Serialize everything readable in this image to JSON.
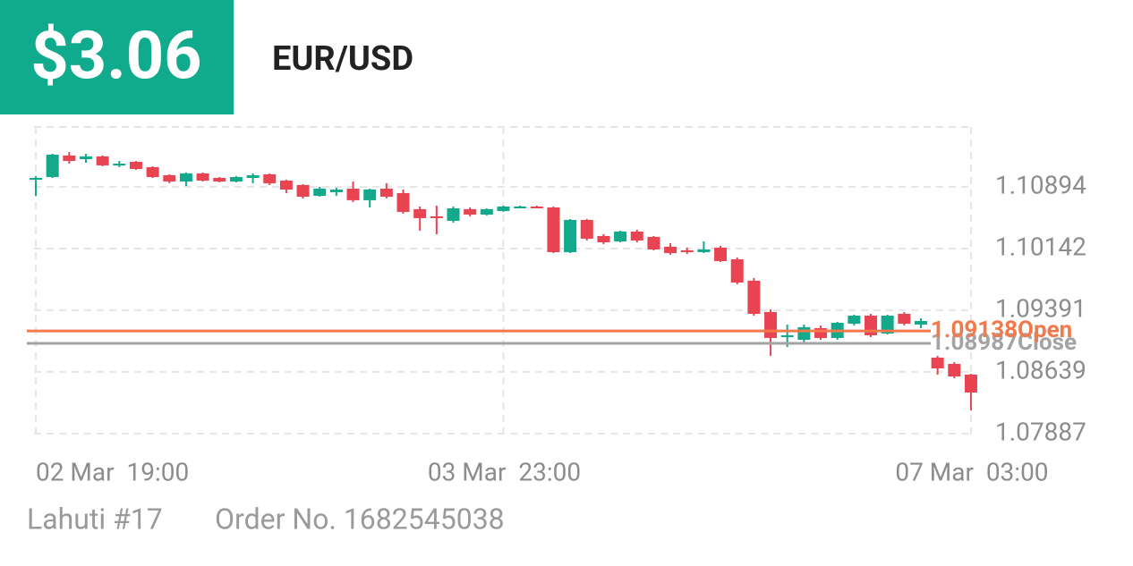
{
  "header": {
    "price": "$3.06",
    "pair": "EUR/USD"
  },
  "chart_data": {
    "type": "candlestick",
    "categories": [
      "02 Mar  19:00",
      null,
      null,
      null,
      null,
      null,
      null,
      null,
      null,
      null,
      null,
      null,
      null,
      null,
      null,
      null,
      null,
      null,
      null,
      null,
      null,
      null,
      null,
      null,
      null,
      null,
      null,
      null,
      "03 Mar  23:00",
      null,
      null,
      null,
      null,
      null,
      null,
      null,
      null,
      null,
      null,
      null,
      null,
      null,
      null,
      null,
      null,
      null,
      null,
      null,
      null,
      null,
      null,
      null,
      null,
      null,
      null,
      null,
      "07 Mar  03:00"
    ],
    "open": [
      1.10981,
      1.11014,
      1.11276,
      1.11232,
      1.11265,
      1.11156,
      1.11199,
      1.11134,
      1.11036,
      1.10959,
      1.11058,
      1.11003,
      1.10959,
      1.11003,
      1.11047,
      1.1097,
      1.10916,
      1.10785,
      1.10829,
      1.10872,
      1.10731,
      1.10872,
      1.10818,
      1.10622,
      1.10534,
      1.1048,
      1.10622,
      1.10556,
      1.106,
      1.10643,
      1.10654,
      1.10643,
      1.10098,
      1.10491,
      1.10295,
      1.10229,
      1.10349,
      1.10284,
      1.10164,
      1.1012,
      1.10098,
      1.10153,
      1.10011,
      1.0975,
      1.09368,
      1.09063,
      1.0903,
      1.09172,
      1.09052,
      1.09226,
      1.09324,
      1.09106,
      1.09346,
      1.09215,
      1.08812,
      1.08736,
      1.08605
    ],
    "high": [
      1.11025,
      1.11297,
      1.11319,
      1.11297,
      1.11276,
      1.1121,
      1.1121,
      1.11145,
      1.11047,
      1.11068,
      1.11068,
      1.11014,
      1.11025,
      1.11058,
      1.11058,
      1.10981,
      1.10927,
      1.10894,
      1.10883,
      1.10959,
      1.10872,
      1.10938,
      1.10861,
      1.10654,
      1.10665,
      1.10654,
      1.10643,
      1.10632,
      1.10665,
      1.10665,
      1.10665,
      1.10654,
      1.10502,
      1.10502,
      1.10316,
      1.1036,
      1.10371,
      1.10295,
      1.10207,
      1.10153,
      1.10229,
      1.10175,
      1.10033,
      1.09782,
      1.09401,
      1.09215,
      1.09215,
      1.09204,
      1.09248,
      1.09335,
      1.09346,
      1.09335,
      1.09368,
      1.09292,
      1.08834,
      1.08758,
      1.08616
    ],
    "low": [
      1.10785,
      1.11003,
      1.11177,
      1.11188,
      1.11145,
      1.11134,
      1.11101,
      1.11003,
      1.10938,
      1.10905,
      1.10959,
      1.10949,
      1.10949,
      1.10938,
      1.10916,
      1.10818,
      1.10752,
      1.10774,
      1.10785,
      1.10709,
      1.10643,
      1.10752,
      1.10567,
      1.1036,
      1.10316,
      1.10458,
      1.10534,
      1.10545,
      1.10589,
      1.10632,
      1.10632,
      1.10087,
      1.10087,
      1.1024,
      1.10196,
      1.10218,
      1.10218,
      1.1012,
      1.10066,
      1.10076,
      1.10087,
      1.09978,
      1.09706,
      1.09324,
      1.08834,
      1.08943,
      1.08987,
      1.0903,
      1.0903,
      1.09204,
      1.09063,
      1.09095,
      1.09204,
      1.09172,
      1.08605,
      1.08561,
      1.08169
    ],
    "close": [
      1.11003,
      1.11286,
      1.1121,
      1.11265,
      1.11156,
      1.11177,
      1.11112,
      1.11014,
      1.10959,
      1.11058,
      1.1097,
      1.10959,
      1.11014,
      1.11036,
      1.10938,
      1.10861,
      1.10774,
      1.10872,
      1.10861,
      1.10731,
      1.10861,
      1.10774,
      1.10589,
      1.10513,
      1.10523,
      1.10632,
      1.10556,
      1.10622,
      1.10654,
      1.10654,
      1.10643,
      1.10098,
      1.10491,
      1.10262,
      1.10218,
      1.10349,
      1.1024,
      1.10131,
      1.10087,
      1.10098,
      1.10131,
      1.09989,
      1.09728,
      1.09346,
      1.09052,
      1.09085,
      1.09183,
      1.09052,
      1.09237,
      1.09324,
      1.09085,
      1.09324,
      1.09226,
      1.09259,
      1.08681,
      1.08583,
      1.08387
    ],
    "up_color": "#13a98b",
    "down_color": "#e94452",
    "ylim": [
      1.07831,
      1.11624
    ],
    "yticks": [
      1.10894,
      1.10142,
      1.09391,
      1.08639,
      1.07887
    ],
    "grid": true,
    "reference_lines": [
      {
        "name": "Close",
        "value": 1.08987,
        "color": "#a3a3a3"
      },
      {
        "name": "Open",
        "value": 1.09138,
        "color": "#f2794b"
      }
    ]
  },
  "footer": {
    "account": "Lahuti #17",
    "order": "Order No. 1682545038"
  }
}
